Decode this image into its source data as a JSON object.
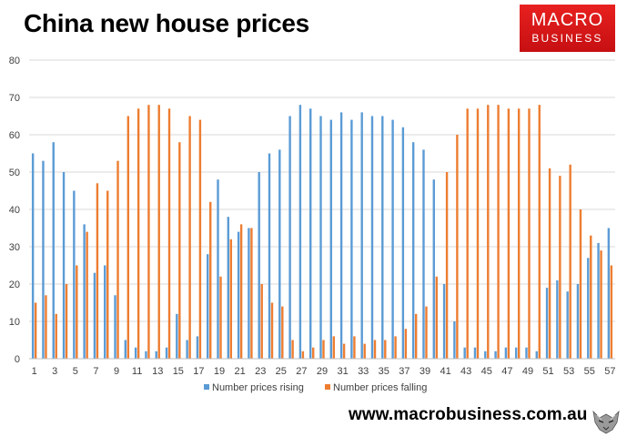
{
  "header": {
    "title": "China new house prices"
  },
  "logo": {
    "line1": "MACRO",
    "line2": "BUSINESS"
  },
  "footer": {
    "website": "www.macrobusiness.com.au"
  },
  "chart_data": {
    "type": "bar",
    "title": "China new house prices",
    "xlabel": "",
    "ylabel": "",
    "ylim": [
      0,
      80
    ],
    "yticks": [
      0,
      10,
      20,
      30,
      40,
      50,
      60,
      70,
      80
    ],
    "grid": true,
    "legend": "bottom",
    "categories": [
      1,
      2,
      3,
      4,
      5,
      6,
      7,
      8,
      9,
      10,
      11,
      12,
      13,
      14,
      15,
      16,
      17,
      18,
      19,
      20,
      21,
      22,
      23,
      24,
      25,
      26,
      27,
      28,
      29,
      30,
      31,
      32,
      33,
      34,
      35,
      36,
      37,
      38,
      39,
      40,
      41,
      42,
      43,
      44,
      45,
      46,
      47,
      48,
      49,
      50,
      51,
      52,
      53,
      54,
      55,
      56,
      57
    ],
    "xtick_labels": [
      "1",
      "3",
      "5",
      "7",
      "9",
      "11",
      "13",
      "15",
      "17",
      "19",
      "21",
      "23",
      "25",
      "27",
      "29",
      "31",
      "33",
      "35",
      "37",
      "39",
      "41",
      "43",
      "45",
      "47",
      "49",
      "51",
      "53",
      "55",
      "57"
    ],
    "series": [
      {
        "name": "Number prices rising",
        "color": "#5b9bd5",
        "values": [
          55,
          53,
          58,
          50,
          45,
          36,
          23,
          25,
          17,
          5,
          3,
          2,
          2,
          3,
          12,
          5,
          6,
          28,
          48,
          38,
          34,
          35,
          50,
          55,
          56,
          65,
          68,
          67,
          65,
          64,
          66,
          64,
          66,
          65,
          65,
          64,
          62,
          58,
          56,
          48,
          20,
          10,
          3,
          3,
          2,
          2,
          3,
          3,
          3,
          2,
          19,
          21,
          18,
          20,
          27,
          31,
          35
        ]
      },
      {
        "name": "Number prices falling",
        "color": "#ed7d31",
        "values": [
          15,
          17,
          12,
          20,
          25,
          34,
          47,
          45,
          53,
          65,
          67,
          68,
          68,
          67,
          58,
          65,
          64,
          42,
          22,
          32,
          36,
          35,
          20,
          15,
          14,
          5,
          2,
          3,
          5,
          6,
          4,
          6,
          4,
          5,
          5,
          6,
          8,
          12,
          14,
          22,
          50,
          60,
          67,
          67,
          68,
          68,
          67,
          67,
          67,
          68,
          51,
          49,
          52,
          40,
          33,
          29,
          25
        ]
      }
    ]
  }
}
